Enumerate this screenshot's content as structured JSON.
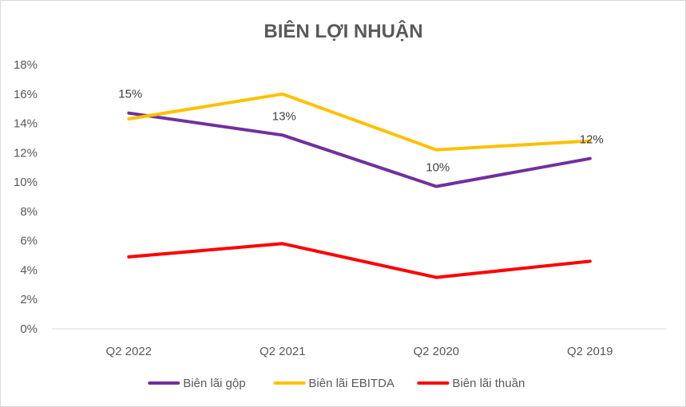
{
  "chart_data": {
    "type": "line",
    "title": "BIÊN LỢI NHUẬN",
    "xlabel": "",
    "ylabel": "",
    "categories": [
      "Q2 2022",
      "Q2 2021",
      "Q2 2020",
      "Q2 2019"
    ],
    "ylim": [
      0,
      18
    ],
    "yticks": [
      "0%",
      "2%",
      "4%",
      "6%",
      "8%",
      "10%",
      "12%",
      "14%",
      "16%",
      "18%"
    ],
    "grid": false,
    "legend": "bottom",
    "series": [
      {
        "name": "Biên lãi gộp",
        "color": "#7030A0",
        "values": [
          14.7,
          13.2,
          9.7,
          11.6
        ]
      },
      {
        "name": "Biên lãi EBITDA",
        "color": "#FFC000",
        "values": [
          14.3,
          16.0,
          12.2,
          12.8
        ]
      },
      {
        "name": "Biên lãi thuần",
        "color": "#FF0000",
        "values": [
          4.9,
          5.8,
          3.5,
          4.6
        ]
      }
    ],
    "data_labels": [
      {
        "category_index": 0,
        "value": 14.7,
        "text": "15%"
      },
      {
        "category_index": 1,
        "value": 13.2,
        "text": "13%"
      },
      {
        "category_index": 2,
        "value": 9.7,
        "text": "10%"
      },
      {
        "category_index": 3,
        "value": 11.6,
        "text": "12%"
      }
    ]
  }
}
